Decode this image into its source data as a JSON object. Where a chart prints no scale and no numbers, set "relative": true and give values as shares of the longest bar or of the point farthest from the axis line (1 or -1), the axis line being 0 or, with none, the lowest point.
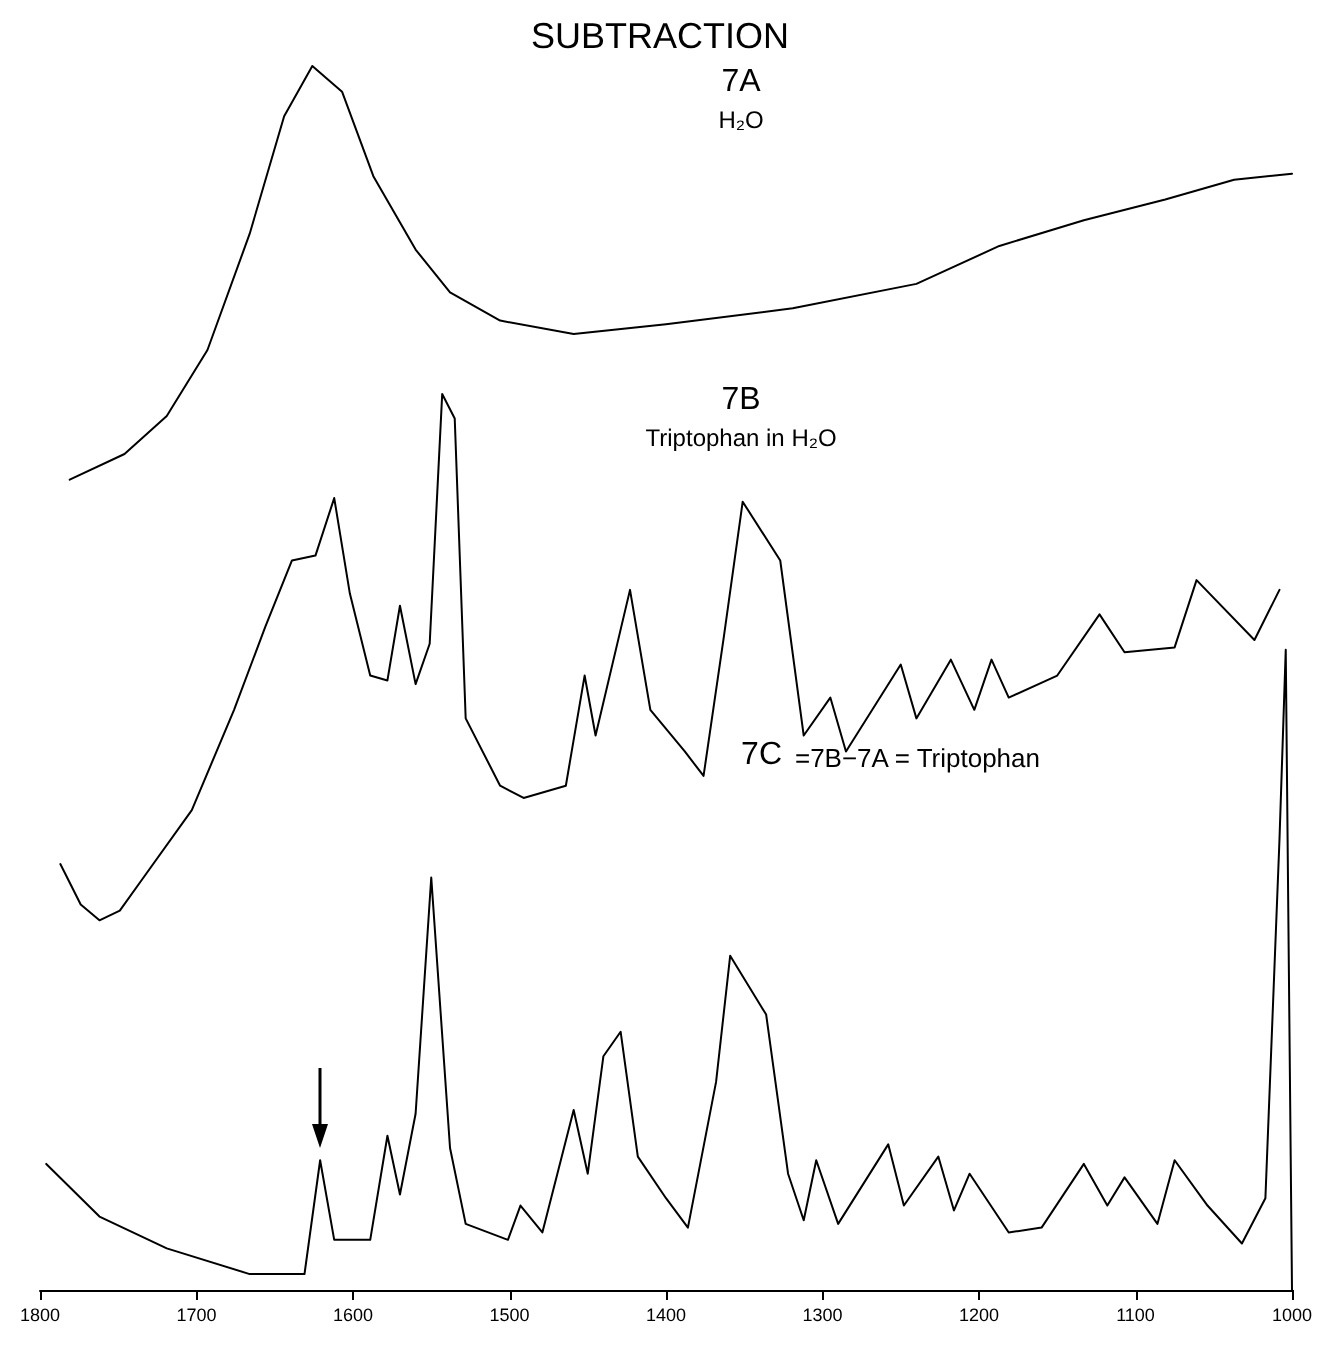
{
  "chart_data": {
    "type": "line",
    "title": "SUBTRACTION",
    "relative": true,
    "marker": "none",
    "line_style": "solid",
    "tick_labels": "x",
    "xlim": [
      1800,
      1000
    ],
    "xticks": [
      1800,
      1700,
      1600,
      1500,
      1400,
      1300,
      1200,
      1100,
      1000
    ],
    "annotations": [
      "7A",
      "H₂O",
      "7B",
      "Triptophan in H₂O",
      "7C",
      "=7B−7A = Triptophan"
    ],
    "series": [
      {
        "color": "#000000",
        "x": [
          1781,
          1746,
          1719,
          1693,
          1666,
          1644,
          1626,
          1607,
          1587,
          1560,
          1538,
          1506,
          1459,
          1400,
          1319,
          1240,
          1187,
          1133,
          1081,
          1037,
          1000
        ],
        "values": [
          0.662,
          0.683,
          0.714,
          0.768,
          0.863,
          0.959,
          1,
          0.979,
          0.91,
          0.85,
          0.815,
          0.792,
          0.781,
          0.789,
          0.802,
          0.822,
          0.853,
          0.874,
          0.891,
          0.907,
          0.912
        ]
      },
      {
        "color": "#000000",
        "x": [
          1787,
          1774,
          1762,
          1749,
          1735,
          1703,
          1676,
          1656,
          1639,
          1624,
          1612,
          1602,
          1589,
          1578,
          1570,
          1560,
          1551,
          1543,
          1535,
          1528,
          1506,
          1491,
          1464,
          1452,
          1445,
          1423,
          1410,
          1388,
          1376,
          1363,
          1351,
          1327,
          1312,
          1295,
          1285,
          1250,
          1240,
          1218,
          1203,
          1192,
          1181,
          1150,
          1123,
          1107,
          1075,
          1061,
          1024,
          1008
        ],
        "values": [
          0.348,
          0.315,
          0.302,
          0.31,
          0.335,
          0.392,
          0.474,
          0.542,
          0.596,
          0.6,
          0.647,
          0.569,
          0.502,
          0.498,
          0.559,
          0.495,
          0.528,
          0.732,
          0.712,
          0.467,
          0.412,
          0.402,
          0.412,
          0.502,
          0.453,
          0.572,
          0.474,
          0.44,
          0.42,
          0.534,
          0.644,
          0.596,
          0.453,
          0.484,
          0.44,
          0.511,
          0.467,
          0.515,
          0.474,
          0.515,
          0.484,
          0.502,
          0.552,
          0.521,
          0.525,
          0.58,
          0.531,
          0.572
        ]
      },
      {
        "color": "#000000",
        "x": [
          1796,
          1762,
          1719,
          1666,
          1631,
          1621,
          1612,
          1589,
          1578,
          1570,
          1560,
          1550,
          1538,
          1528,
          1501,
          1493,
          1479,
          1459,
          1450,
          1440,
          1429,
          1418,
          1400,
          1386,
          1368,
          1359,
          1336,
          1322,
          1312,
          1304,
          1290,
          1258,
          1248,
          1226,
          1216,
          1206,
          1181,
          1160,
          1133,
          1118,
          1107,
          1086,
          1075,
          1054,
          1032,
          1017,
          1008,
          1004,
          1000
        ],
        "values": [
          0.103,
          0.06,
          0.034,
          0.013,
          0.013,
          0.106,
          0.041,
          0.041,
          0.126,
          0.078,
          0.144,
          0.337,
          0.116,
          0.054,
          0.041,
          0.069,
          0.047,
          0.147,
          0.095,
          0.191,
          0.211,
          0.109,
          0.075,
          0.051,
          0.17,
          0.273,
          0.225,
          0.095,
          0.057,
          0.106,
          0.054,
          0.119,
          0.069,
          0.109,
          0.065,
          0.095,
          0.047,
          0.051,
          0.103,
          0.069,
          0.092,
          0.054,
          0.106,
          0.069,
          0.038,
          0.075,
          0.368,
          0.523,
          0
        ]
      }
    ]
  }
}
